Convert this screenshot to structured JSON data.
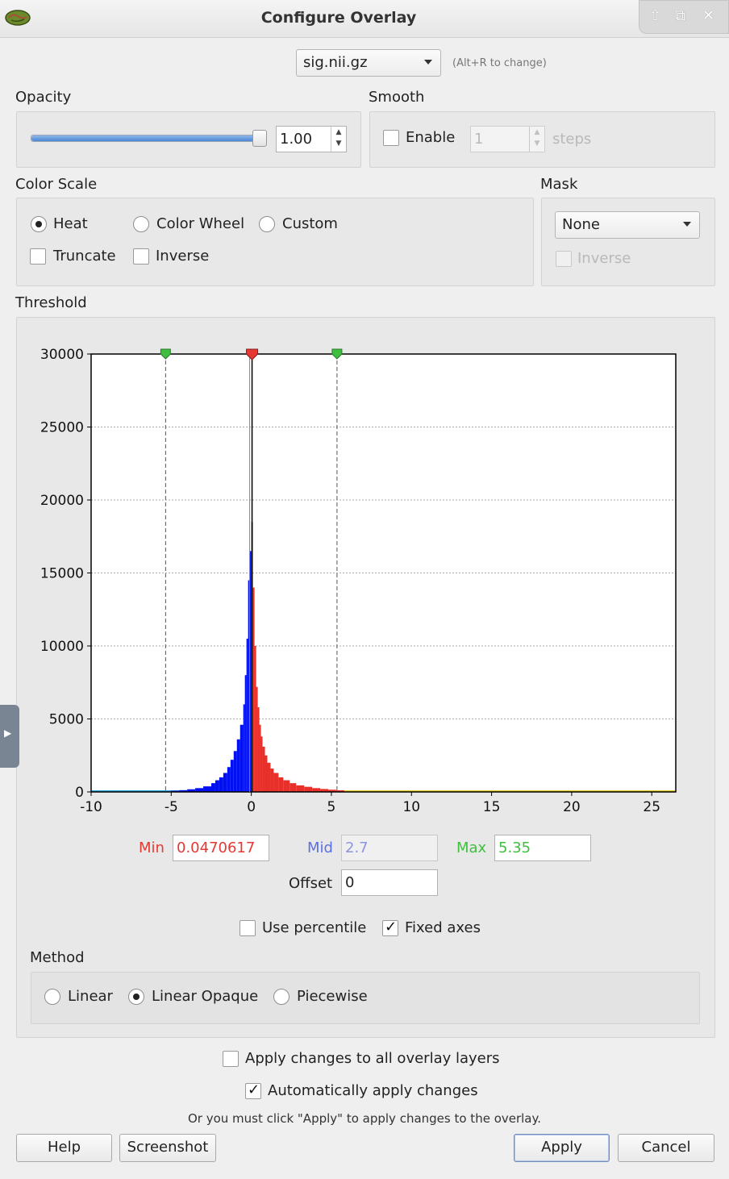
{
  "window": {
    "title": "Configure Overlay"
  },
  "overlay_select": {
    "value": "sig.nii.gz",
    "hint": "(Alt+R to change)"
  },
  "opacity": {
    "label": "Opacity",
    "value": "1.00",
    "slider_level": 1.0
  },
  "smooth": {
    "label": "Smooth",
    "enable_label": "Enable",
    "enabled": false,
    "steps_value": "1",
    "steps_label": "steps"
  },
  "color_scale": {
    "label": "Color Scale",
    "options": [
      "Heat",
      "Color Wheel",
      "Custom"
    ],
    "selected": "Heat",
    "truncate_label": "Truncate",
    "inverse_label": "Inverse"
  },
  "mask": {
    "label": "Mask",
    "value": "None",
    "inverse_label": "Inverse"
  },
  "threshold": {
    "label": "Threshold",
    "min_label": "Min",
    "min_value": "0.0470617",
    "mid_label": "Mid",
    "mid_value": "2.7",
    "max_label": "Max",
    "max_value": "5.35",
    "offset_label": "Offset",
    "offset_value": "0",
    "use_percentile_label": "Use percentile",
    "fixed_axes_label": "Fixed axes"
  },
  "method": {
    "label": "Method",
    "options": [
      "Linear",
      "Linear Opaque",
      "Piecewise"
    ],
    "selected": "Linear Opaque"
  },
  "footer": {
    "apply_all_label": "Apply changes to all overlay layers",
    "auto_apply_label": "Automatically apply changes",
    "note": "Or you must click \"Apply\" to apply changes to the overlay.",
    "help": "Help",
    "screenshot": "Screenshot",
    "apply": "Apply",
    "cancel": "Cancel"
  },
  "colors": {
    "min": "#e53935",
    "mid": "#5b6fe6",
    "max": "#3fbf3f",
    "neg_bars": "#0010f0",
    "pos_bars": "#e8302a"
  },
  "chart_data": {
    "type": "bar",
    "title": "",
    "xlabel": "",
    "ylabel": "",
    "xlim": [
      -10,
      26.5
    ],
    "ylim": [
      0,
      30000
    ],
    "x_ticks": [
      -10,
      -5,
      0,
      5,
      10,
      15,
      20,
      25
    ],
    "y_ticks": [
      0,
      5000,
      10000,
      15000,
      20000,
      25000,
      30000
    ],
    "markers": {
      "min_neg": -5.35,
      "min": 0.047,
      "max": 5.35
    },
    "series": [
      {
        "name": "negative",
        "color": "#0010f0",
        "x": [
          -5.0,
          -4.5,
          -4.0,
          -3.5,
          -3.0,
          -2.5,
          -2.25,
          -2.0,
          -1.75,
          -1.5,
          -1.3,
          -1.1,
          -0.9,
          -0.7,
          -0.5,
          -0.4,
          -0.3,
          -0.2,
          -0.1
        ],
        "values": [
          80,
          120,
          180,
          260,
          380,
          600,
          800,
          1000,
          1300,
          1700,
          2200,
          2800,
          3600,
          4600,
          6000,
          8000,
          10500,
          14500,
          16500
        ]
      },
      {
        "name": "positive",
        "color": "#e8302a",
        "x": [
          0.0,
          0.1,
          0.2,
          0.3,
          0.4,
          0.5,
          0.6,
          0.7,
          0.85,
          1.0,
          1.2,
          1.4,
          1.7,
          2.0,
          2.4,
          2.8,
          3.3,
          3.8,
          4.3,
          4.8,
          5.3
        ],
        "values": [
          18500,
          14000,
          10000,
          7200,
          5800,
          4600,
          3800,
          3100,
          2500,
          2000,
          1600,
          1300,
          1000,
          800,
          600,
          450,
          350,
          260,
          200,
          150,
          110
        ]
      }
    ]
  }
}
